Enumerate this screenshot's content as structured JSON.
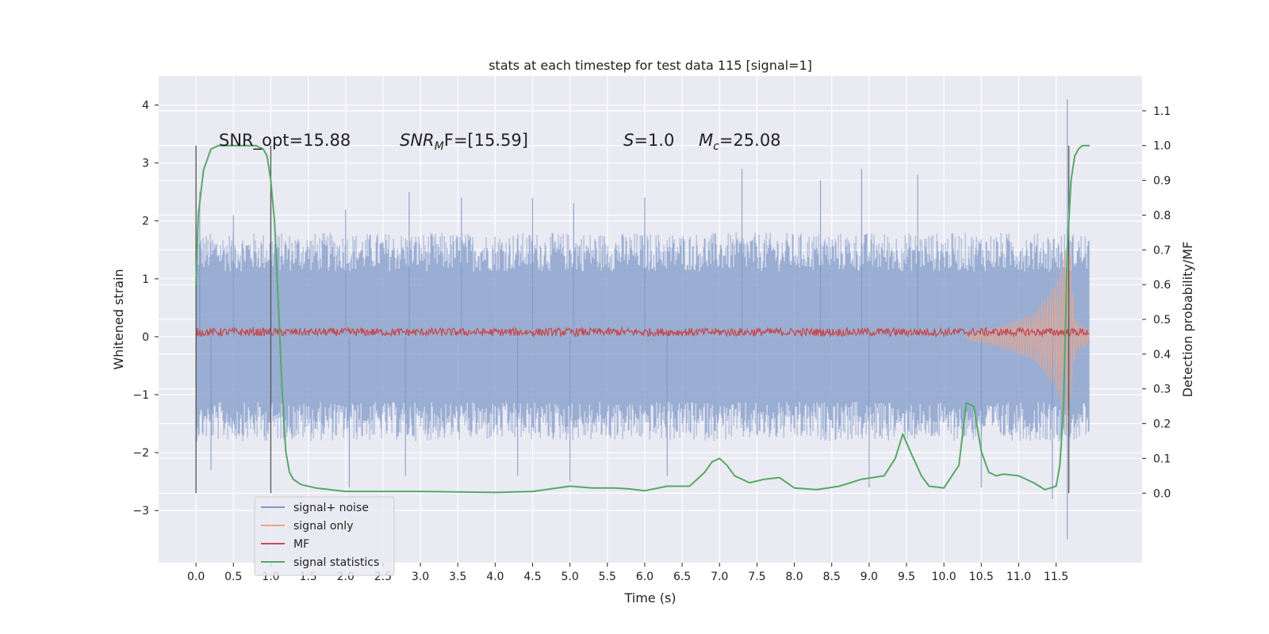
{
  "chart_data": {
    "type": "line",
    "title": "stats at each timestep for test data 115 [signal=1]",
    "xlabel": "Time (s)",
    "ylabel_left": "Whitened strain",
    "ylabel_right": "Detection probability/MF",
    "xlim": [
      -0.5,
      12.65
    ],
    "ylim_left": [
      -3.9,
      4.5
    ],
    "ylim_right": [
      -0.2,
      1.2
    ],
    "x_ticks": [
      "0.0",
      "0.5",
      "1.0",
      "1.5",
      "2.0",
      "2.5",
      "3.0",
      "3.5",
      "4.0",
      "4.5",
      "5.0",
      "5.5",
      "6.0",
      "6.5",
      "7.0",
      "7.5",
      "8.0",
      "8.5",
      "9.0",
      "9.5",
      "10.0",
      "10.5",
      "11.0",
      "11.5"
    ],
    "y_ticks_left": [
      "4",
      "3",
      "2",
      "1",
      "0",
      "−1",
      "−2",
      "−3"
    ],
    "y_ticks_right": [
      "1.1",
      "1.0",
      "0.9",
      "0.8",
      "0.7",
      "0.6",
      "0.5",
      "0.4",
      "0.3",
      "0.2",
      "0.1",
      "0.0"
    ],
    "grid": true,
    "legend_position": "lower-left",
    "annotations": {
      "snr_opt": "SNR_opt=15.88",
      "snr_mf_label": "SNR",
      "snr_mf_sub": "M",
      "snr_mf_rest": "F=[15.59]",
      "s_label": "S",
      "s_rest": "=1.0",
      "mc_label": "M",
      "mc_sub": "c",
      "mc_rest": "=25.08"
    },
    "vertical_lines_x": [
      0.0,
      1.0,
      11.67
    ],
    "series": [
      {
        "name": "signal+ noise",
        "axis": "left",
        "color": "#7f98c8",
        "envelope_x": [
          0.0,
          1.0,
          2.0,
          3.0,
          4.0,
          5.0,
          6.0,
          7.0,
          8.0,
          9.0,
          10.0,
          11.0,
          11.5,
          11.67,
          11.8,
          11.95
        ],
        "upper": [
          1.5,
          1.5,
          1.5,
          1.5,
          1.5,
          1.5,
          1.5,
          1.5,
          1.5,
          1.5,
          1.5,
          1.5,
          1.5,
          1.5,
          1.5,
          1.5
        ],
        "lower": [
          -1.5,
          -1.5,
          -1.5,
          -1.5,
          -1.5,
          -1.5,
          -1.5,
          -1.5,
          -1.5,
          -1.5,
          -1.5,
          -1.5,
          -1.5,
          -1.5,
          -1.5,
          -1.5
        ],
        "spikes": [
          {
            "x": 0.05,
            "y": 2.5
          },
          {
            "x": 0.5,
            "y": 2.1
          },
          {
            "x": 1.0,
            "y": 2.4
          },
          {
            "x": 2.0,
            "y": 2.2
          },
          {
            "x": 2.85,
            "y": 2.5
          },
          {
            "x": 3.55,
            "y": 2.4
          },
          {
            "x": 4.5,
            "y": 2.4
          },
          {
            "x": 5.05,
            "y": 2.3
          },
          {
            "x": 6.0,
            "y": 2.4
          },
          {
            "x": 7.3,
            "y": 2.9
          },
          {
            "x": 8.35,
            "y": 2.7
          },
          {
            "x": 8.9,
            "y": 2.9
          },
          {
            "x": 9.65,
            "y": 2.8
          },
          {
            "x": 11.65,
            "y": 4.1
          },
          {
            "x": 0.2,
            "y": -2.3
          },
          {
            "x": 2.05,
            "y": -2.6
          },
          {
            "x": 2.8,
            "y": -2.4
          },
          {
            "x": 4.3,
            "y": -2.4
          },
          {
            "x": 5.0,
            "y": -2.5
          },
          {
            "x": 6.3,
            "y": -2.4
          },
          {
            "x": 9.0,
            "y": -2.6
          },
          {
            "x": 10.5,
            "y": -2.6
          },
          {
            "x": 11.45,
            "y": -2.8
          },
          {
            "x": 11.65,
            "y": -3.5
          }
        ]
      },
      {
        "name": "signal only",
        "axis": "left",
        "color": "#eaa68a",
        "envelope_x": [
          10.3,
          10.8,
          11.2,
          11.5,
          11.6,
          11.67,
          11.75,
          11.95
        ],
        "amplitude": [
          0.05,
          0.2,
          0.4,
          0.9,
          1.3,
          1.8,
          0.3,
          0.1
        ]
      },
      {
        "name": "MF",
        "axis": "left",
        "color": "#c44e52",
        "x_range": [
          0.0,
          11.95
        ],
        "center": 0.08,
        "amplitude": 0.14
      },
      {
        "name": "signal statistics",
        "axis": "right",
        "color": "#55a868",
        "x": [
          0.0,
          0.03,
          0.1,
          0.2,
          0.3,
          0.5,
          0.8,
          0.9,
          0.95,
          1.0,
          1.05,
          1.1,
          1.15,
          1.2,
          1.25,
          1.3,
          1.4,
          1.6,
          2.0,
          3.0,
          4.0,
          4.5,
          5.0,
          5.3,
          5.6,
          5.8,
          6.0,
          6.3,
          6.6,
          6.8,
          6.9,
          7.0,
          7.05,
          7.1,
          7.2,
          7.4,
          7.6,
          7.8,
          8.0,
          8.3,
          8.6,
          8.9,
          9.2,
          9.35,
          9.45,
          9.55,
          9.7,
          9.8,
          10.0,
          10.2,
          10.3,
          10.4,
          10.5,
          10.6,
          10.7,
          10.8,
          11.0,
          11.2,
          11.35,
          11.5,
          11.55,
          11.6,
          11.65,
          11.7,
          11.75,
          11.8,
          11.85,
          11.95
        ],
        "y": [
          0.6,
          0.8,
          0.93,
          0.99,
          1.0,
          1.0,
          1.0,
          0.99,
          0.97,
          0.9,
          0.78,
          0.55,
          0.3,
          0.12,
          0.06,
          0.04,
          0.025,
          0.015,
          0.005,
          0.005,
          0.002,
          0.005,
          0.02,
          0.015,
          0.015,
          0.012,
          0.007,
          0.02,
          0.02,
          0.06,
          0.09,
          0.1,
          0.09,
          0.08,
          0.05,
          0.03,
          0.04,
          0.045,
          0.015,
          0.01,
          0.02,
          0.04,
          0.05,
          0.1,
          0.17,
          0.12,
          0.05,
          0.02,
          0.015,
          0.08,
          0.26,
          0.25,
          0.12,
          0.06,
          0.05,
          0.055,
          0.05,
          0.03,
          0.01,
          0.02,
          0.08,
          0.25,
          0.7,
          0.9,
          0.97,
          0.99,
          1.0,
          1.0
        ]
      }
    ]
  }
}
